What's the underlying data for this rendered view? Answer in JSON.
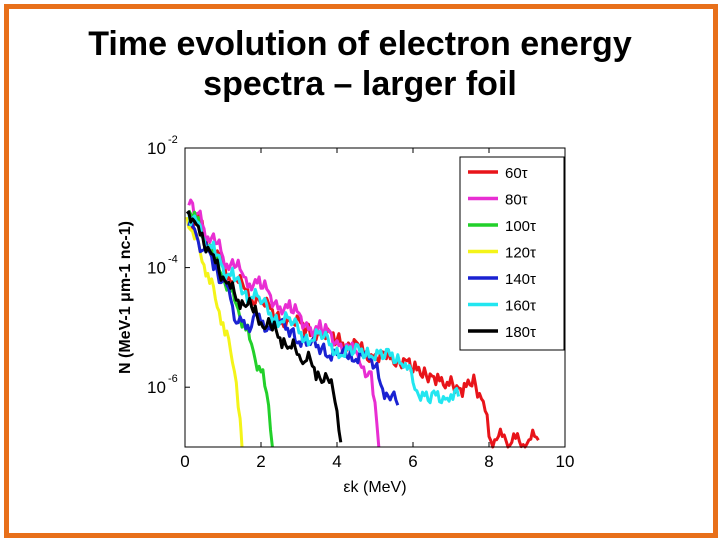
{
  "slide": {
    "title_line1": "Time evolution of electron energy",
    "title_line2": "spectra – larger foil",
    "frame_color": "#e8701a"
  },
  "chart_data": {
    "type": "line",
    "title": "Time evolution of electron energy spectra – larger foil",
    "xlabel": "εk (MeV)",
    "ylabel": "N (MeV-1 μm-1 nc-1)",
    "x_scale": "linear",
    "y_scale": "log",
    "xlim": [
      0,
      10
    ],
    "ylim": [
      1e-07,
      0.01
    ],
    "xticks": [
      0,
      2,
      4,
      6,
      8,
      10
    ],
    "xtick_labels": [
      "0",
      "2",
      "4",
      "6",
      "8",
      "10"
    ],
    "yticks": [
      0.01,
      0.0001,
      1e-06
    ],
    "ytick_base": "10",
    "ytick_exponents": [
      "-2",
      "-4",
      "-6"
    ],
    "legend_position": "top-right",
    "series": [
      {
        "name": "60τ",
        "color": "#e8141a",
        "x": [
          0.1,
          0.3,
          0.5,
          0.8,
          1.0,
          1.3,
          1.6,
          2.0,
          2.4,
          2.8,
          3.2,
          3.6,
          4.0,
          4.3,
          4.6,
          5.0,
          5.3,
          5.6,
          6.0,
          6.3,
          6.6,
          7.0,
          7.3,
          7.6,
          7.9,
          8.0,
          8.6,
          9.3
        ],
        "y": [
          0.00065,
          0.0007,
          0.00035,
          0.00018,
          0.00011,
          6e-05,
          4.2e-05,
          2.5e-05,
          1.6e-05,
          1.2e-05,
          9.5e-06,
          7.5e-06,
          6.2e-06,
          5.5e-06,
          4.2e-06,
          3.5e-06,
          3e-06,
          3.2e-06,
          1.8e-06,
          2.1e-06,
          1.1e-06,
          1.5e-06,
          7e-07,
          1.6e-06,
          4e-07,
          1.5e-07,
          1.2e-07,
          1.3e-07
        ]
      },
      {
        "name": "80τ",
        "color": "#e82ed2",
        "x": [
          0.1,
          0.2,
          0.3,
          0.5,
          0.8,
          1.0,
          1.3,
          1.6,
          2.0,
          2.4,
          2.8,
          3.2,
          3.6,
          4.0,
          4.3,
          4.6,
          4.9,
          5.1
        ],
        "y": [
          0.0011,
          0.0012,
          0.0008,
          0.00045,
          0.00025,
          0.00015,
          0.0001,
          6.8e-05,
          4.5e-05,
          2.8e-05,
          1.8e-05,
          1.2e-05,
          8.5e-06,
          6e-06,
          5e-06,
          2.5e-06,
          1.8e-06,
          1e-07
        ]
      },
      {
        "name": "100τ",
        "color": "#22d02a",
        "x": [
          0.1,
          0.3,
          0.5,
          0.8,
          1.0,
          1.2,
          1.4,
          1.6,
          1.8,
          2.0,
          2.2,
          2.3
        ],
        "y": [
          0.0009,
          0.0006,
          0.0003,
          0.00013,
          7e-05,
          4e-05,
          2e-05,
          9e-06,
          4e-06,
          1.8e-06,
          5e-07,
          1e-07
        ]
      },
      {
        "name": "120τ",
        "color": "#f4f419",
        "x": [
          0.05,
          0.2,
          0.4,
          0.6,
          0.8,
          1.0,
          1.2,
          1.35,
          1.45,
          1.5
        ],
        "y": [
          0.0007,
          0.0004,
          0.00018,
          8e-05,
          3e-05,
          1.2e-05,
          4e-06,
          1.2e-06,
          3e-07,
          1e-07
        ]
      },
      {
        "name": "140τ",
        "color": "#1a22d2",
        "x": [
          0.1,
          0.3,
          0.5,
          0.8,
          1.0,
          1.2,
          1.4,
          1.6,
          1.8,
          2.0,
          2.4,
          2.8,
          3.2,
          3.6,
          4.0,
          4.3,
          4.6,
          5.0,
          5.3,
          5.6
        ],
        "y": [
          0.0005,
          0.00035,
          0.0002,
          0.00011,
          6e-05,
          3e-05,
          1.2e-05,
          9.5e-06,
          1.5e-05,
          1.2e-05,
          1.1e-05,
          9e-06,
          5e-06,
          4.5e-06,
          3.5e-06,
          3e-06,
          3.8e-06,
          2.2e-06,
          8e-07,
          5e-07
        ]
      },
      {
        "name": "160τ",
        "color": "#22e6f0",
        "x": [
          0.1,
          0.3,
          0.5,
          0.8,
          1.0,
          1.3,
          1.6,
          2.0,
          2.4,
          2.8,
          3.2,
          3.6,
          4.0,
          4.4,
          4.8,
          5.2,
          5.6,
          5.8,
          6.0,
          6.4,
          6.8,
          7.0,
          7.2
        ],
        "y": [
          0.0008,
          0.0006,
          0.0003,
          0.00016,
          0.0001,
          6e-05,
          4e-05,
          2.5e-05,
          1.6e-05,
          1.1e-05,
          7.5e-06,
          6.5e-06,
          4.5e-06,
          3.5e-06,
          4.5e-06,
          3e-06,
          3.5e-06,
          2.5e-06,
          1.2e-06,
          6e-07,
          7e-07,
          7.5e-07,
          7e-07
        ]
      },
      {
        "name": "180τ",
        "color": "#000000",
        "x": [
          0.05,
          0.2,
          0.4,
          0.6,
          0.8,
          1.0,
          1.2,
          1.5,
          1.8,
          2.0,
          2.3,
          2.6,
          2.8,
          3.0,
          3.2,
          3.5,
          3.8,
          4.0,
          4.1
        ],
        "y": [
          0.0008,
          0.00065,
          0.00035,
          0.00022,
          0.00012,
          7e-05,
          4.5e-05,
          2.8e-05,
          1.8e-05,
          1.2e-05,
          9e-06,
          6.5e-06,
          4.5e-06,
          3.5e-06,
          2.8e-06,
          1.8e-06,
          1.2e-06,
          4e-07,
          1.2e-07
        ]
      }
    ]
  }
}
